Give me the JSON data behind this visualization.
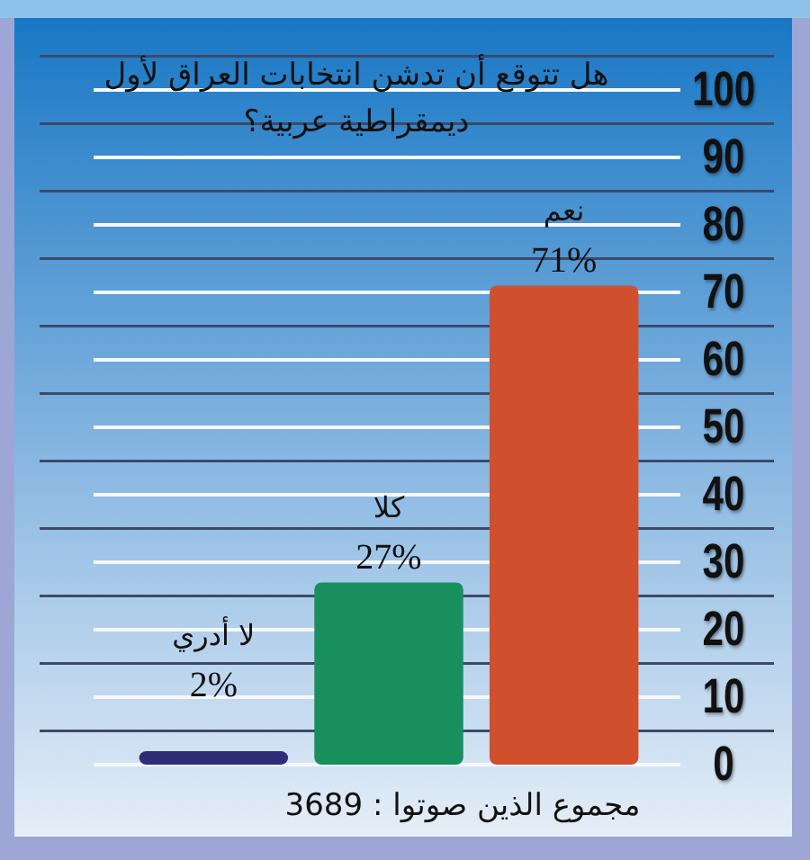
{
  "chart_data": {
    "type": "bar",
    "title": "هل تتوقع أن تدشن انتخابات العراق لأول\nديمقراطية عربية؟",
    "categories": [
      "لا أدري",
      "كلا",
      "نعم"
    ],
    "values": [
      2,
      27,
      71
    ],
    "value_labels": [
      "2%",
      "27%",
      "71%"
    ],
    "colors": [
      "#2e2e78",
      "#1a8f5e",
      "#d0502e"
    ],
    "ylim": [
      0,
      105
    ],
    "yticks": [
      0,
      {
        "value": 5,
        "label": null
      },
      10,
      {
        "value": 15,
        "label": null
      },
      20,
      {
        "value": 25,
        "label": null
      },
      30,
      {
        "value": 35,
        "label": null
      },
      40,
      {
        "value": 45,
        "label": null
      },
      50,
      {
        "value": 55,
        "label": null
      },
      60,
      {
        "value": 65,
        "label": null
      },
      70,
      {
        "value": 75,
        "label": null
      },
      80,
      {
        "value": 85,
        "label": null
      },
      90,
      {
        "value": 95,
        "label": null
      },
      100,
      {
        "value": 105,
        "label": null
      }
    ],
    "grid": true,
    "annotations": [
      "مجموع الذين صوتوا : 3689"
    ]
  }
}
